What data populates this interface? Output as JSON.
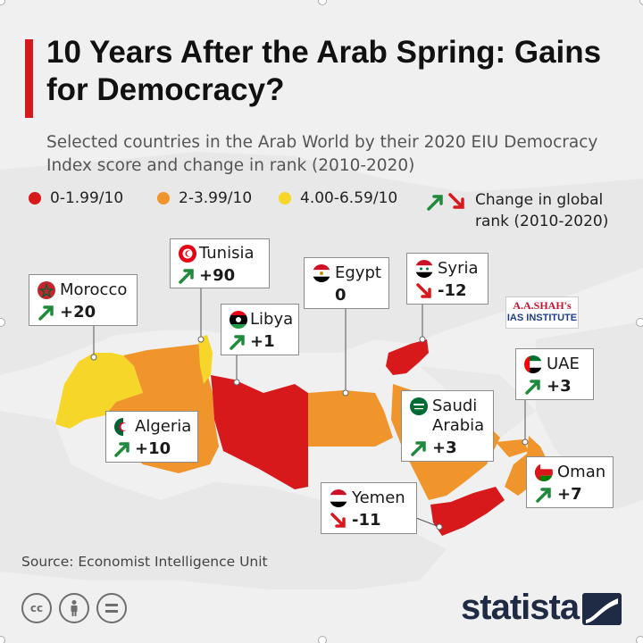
{
  "header": {
    "title": "10 Years After the Arab Spring: Gains for Democracy?",
    "subtitle": "Selected countries in the Arab World by their 2020 EIU Democracy Index score and change in rank (2010-2020)"
  },
  "legend": {
    "items": [
      {
        "label": "0-1.99/10",
        "color": "#d7191c"
      },
      {
        "label": "2-3.99/10",
        "color": "#f0952c"
      },
      {
        "label": "4.00-6.59/10",
        "color": "#f7d62a"
      }
    ],
    "change_label": "Change in global rank (2010-2020)",
    "up_color": "#1f8a3b",
    "down_color": "#d7191c"
  },
  "countries": [
    {
      "name": "Morocco",
      "change": "+20",
      "direction": "up",
      "flag": "morocco-flag-icon"
    },
    {
      "name": "Tunisia",
      "change": "+90",
      "direction": "up",
      "flag": "tunisia-flag-icon"
    },
    {
      "name": "Libya",
      "change": "+1",
      "direction": "up",
      "flag": "libya-flag-icon"
    },
    {
      "name": "Egypt",
      "change": "0",
      "direction": "none",
      "flag": "egypt-flag-icon"
    },
    {
      "name": "Syria",
      "change": "-12",
      "direction": "down",
      "flag": "syria-flag-icon"
    },
    {
      "name": "Algeria",
      "change": "+10",
      "direction": "up",
      "flag": "algeria-flag-icon"
    },
    {
      "name": "Saudi Arabia",
      "change": "+3",
      "direction": "up",
      "flag": "saudi-flag-icon"
    },
    {
      "name": "UAE",
      "change": "+3",
      "direction": "up",
      "flag": "uae-flag-icon"
    },
    {
      "name": "Oman",
      "change": "+7",
      "direction": "up",
      "flag": "oman-flag-icon"
    },
    {
      "name": "Yemen",
      "change": "-11",
      "direction": "down",
      "flag": "yemen-flag-icon"
    }
  ],
  "map_colors": {
    "land": "#e3e3e3",
    "red": "#d7191c",
    "orange": "#f0952c",
    "yellow": "#f7d62a"
  },
  "logo_overlay": {
    "line1": "A.A.SHAH's",
    "line2": "IAS INSTITUTE"
  },
  "footer": {
    "source": "Source: Economist Intelligence Unit",
    "brand": "statista",
    "cc_icons": [
      "creative-commons-icon",
      "attribution-icon",
      "no-derivatives-icon"
    ]
  }
}
